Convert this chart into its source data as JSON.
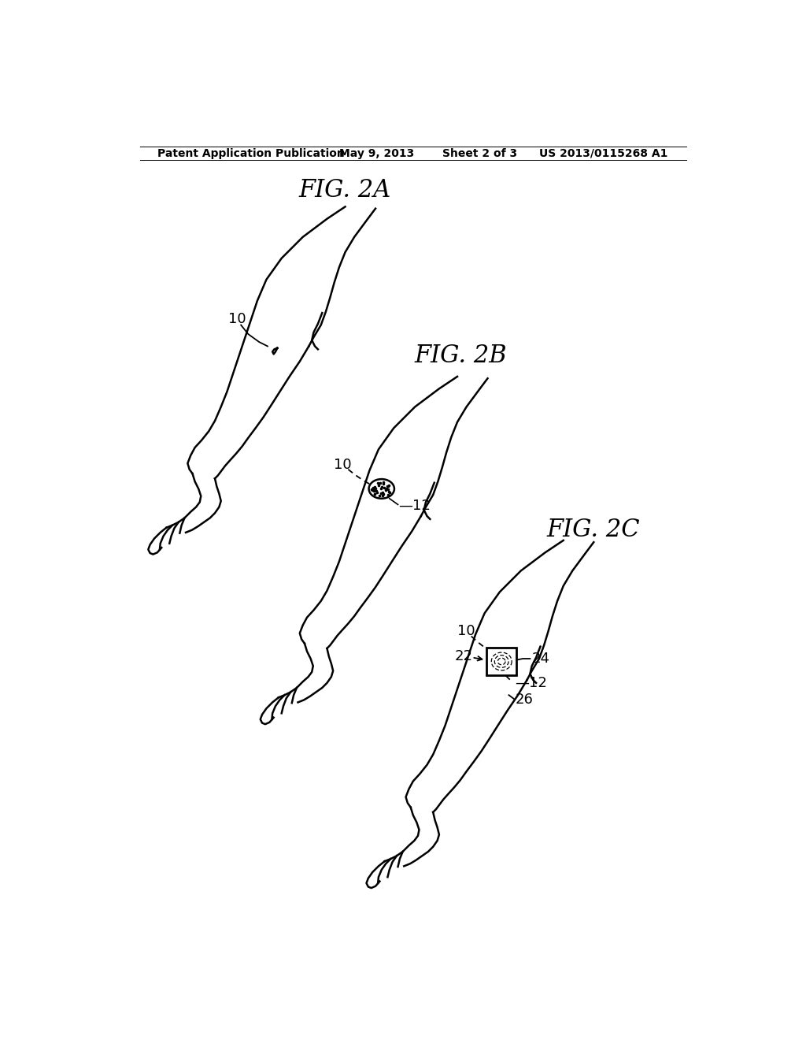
{
  "title_header": "Patent Application Publication",
  "date": "May 9, 2013",
  "sheet": "Sheet 2 of 3",
  "patent_num": "US 2013/0115268 A1",
  "fig2a_label": "FIG. 2A",
  "fig2b_label": "FIG. 2B",
  "fig2c_label": "FIG. 2C",
  "background_color": "#ffffff",
  "line_color": "#000000",
  "label_fontsize": 13,
  "header_fontsize": 10,
  "fig_label_fontsize": 22,
  "lw": 1.8
}
